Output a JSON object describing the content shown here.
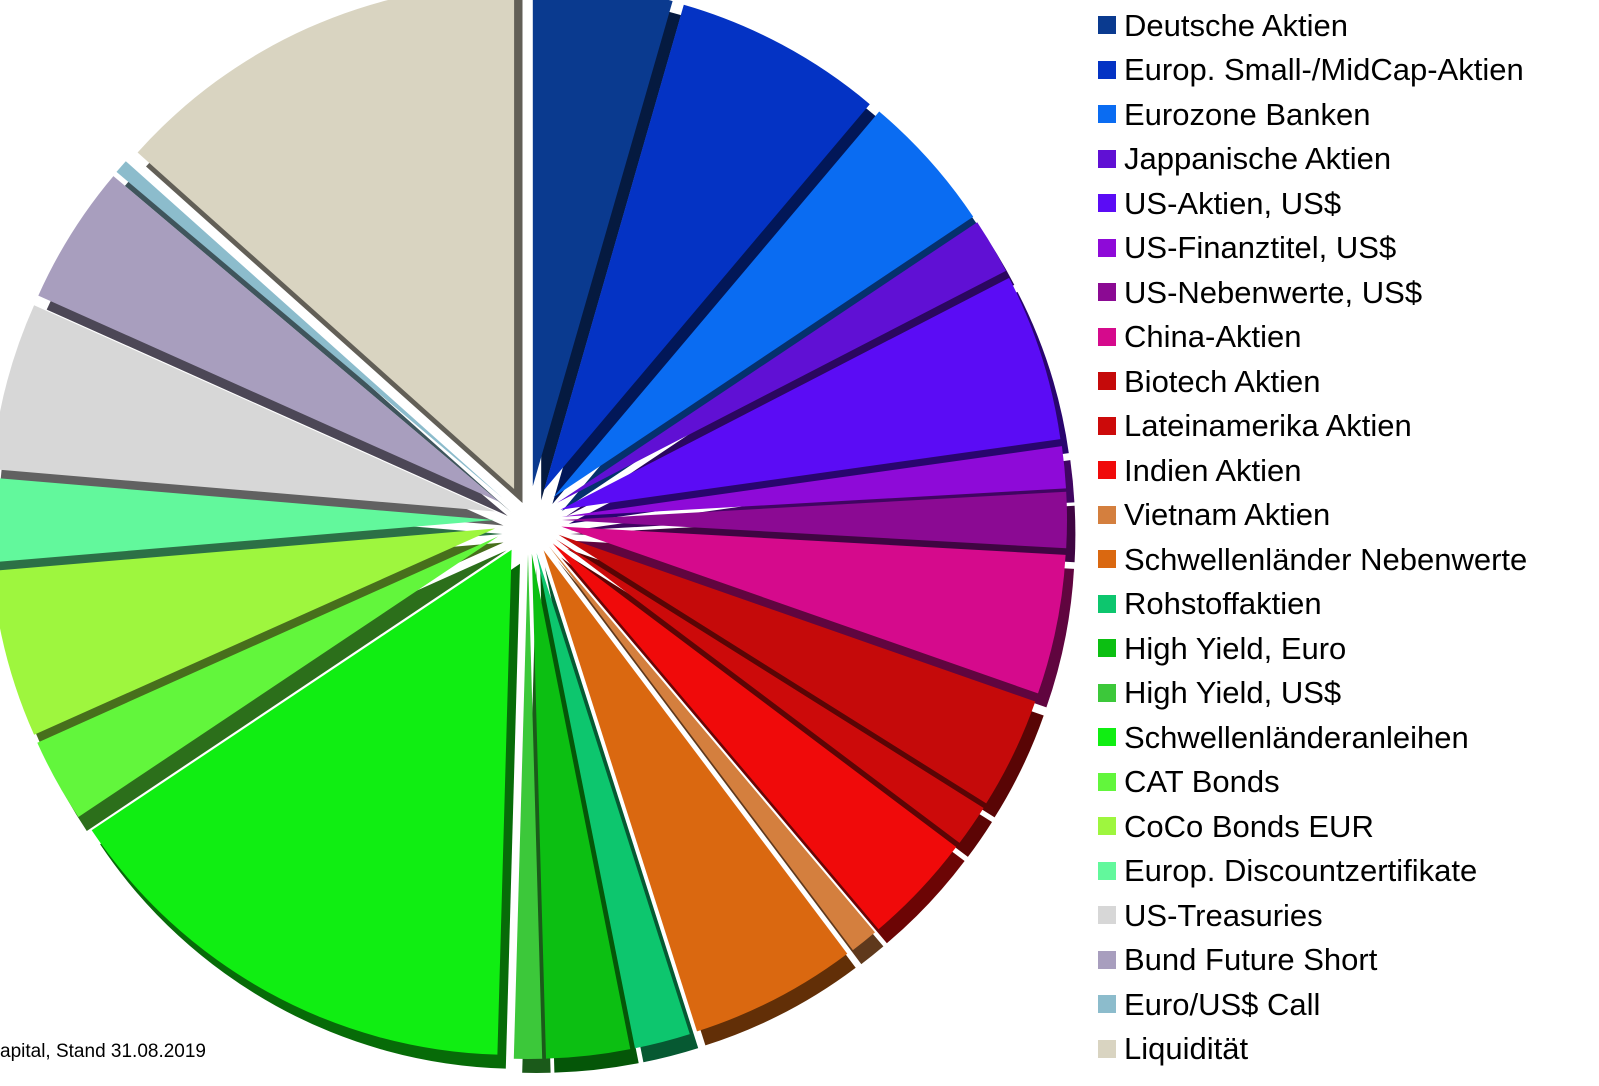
{
  "chart_data": {
    "type": "pie",
    "style": "3d-exploded",
    "legend_position": "right",
    "slices": [
      {
        "label": "Deutsche Aktien",
        "value": 5.0,
        "color": "#0a3a8f"
      },
      {
        "label": "Europ. Small-/MidCap-Aktien",
        "value": 7.5,
        "color": "#0433c4"
      },
      {
        "label": "Eurozone Banken",
        "value": 5.0,
        "color": "#0a6cf2"
      },
      {
        "label": "Jappanische Aktien",
        "value": 2.0,
        "color": "#6010d4"
      },
      {
        "label": "US-Aktien, US$",
        "value": 6.0,
        "color": "#5b0cf5"
      },
      {
        "label": "US-Finanztitel, US$",
        "value": 1.5,
        "color": "#8e0ad8"
      },
      {
        "label": "US-Nebenwerte, US$",
        "value": 2.0,
        "color": "#8b0a93"
      },
      {
        "label": "China-Aktien",
        "value": 5.0,
        "color": "#d50a8c"
      },
      {
        "label": "Biotech Aktien",
        "value": 4.0,
        "color": "#c50a0a"
      },
      {
        "label": "Lateinamerika Aktien",
        "value": 1.5,
        "color": "#cc0a0a"
      },
      {
        "label": "Indien Aktien",
        "value": 4.0,
        "color": "#f00a0a"
      },
      {
        "label": "Vietnam Aktien",
        "value": 1.0,
        "color": "#d47f3e"
      },
      {
        "label": "Schwellenländer Nebenwerte",
        "value": 6.0,
        "color": "#da6810"
      },
      {
        "label": "Rohstoffaktien",
        "value": 2.0,
        "color": "#0dc66e"
      },
      {
        "label": "High Yield, Euro",
        "value": 3.0,
        "color": "#0cbf12"
      },
      {
        "label": "High Yield, US$",
        "value": 1.0,
        "color": "#3cc83a"
      },
      {
        "label": "Schwellenländeranleihen",
        "value": 17.0,
        "color": "#10ee12"
      },
      {
        "label": "CAT Bonds",
        "value": 3.0,
        "color": "#62f63c"
      },
      {
        "label": "CoCo Bonds EUR",
        "value": 6.0,
        "color": "#9ef63e"
      },
      {
        "label": "Europ. Discountzertifikate",
        "value": 3.0,
        "color": "#62f89c"
      },
      {
        "label": "US-Treasuries",
        "value": 6.0,
        "color": "#d7d7d7"
      },
      {
        "label": "Bund Future Short",
        "value": 5.0,
        "color": "#a89ebe"
      },
      {
        "label": "Euro/US$ Call",
        "value": 0.5,
        "color": "#8cbccc"
      },
      {
        "label": "Liquidität",
        "value": 15.0,
        "color": "#d9d4c1"
      }
    ]
  },
  "footer": {
    "source": "apital, Stand 31.08.2019"
  }
}
